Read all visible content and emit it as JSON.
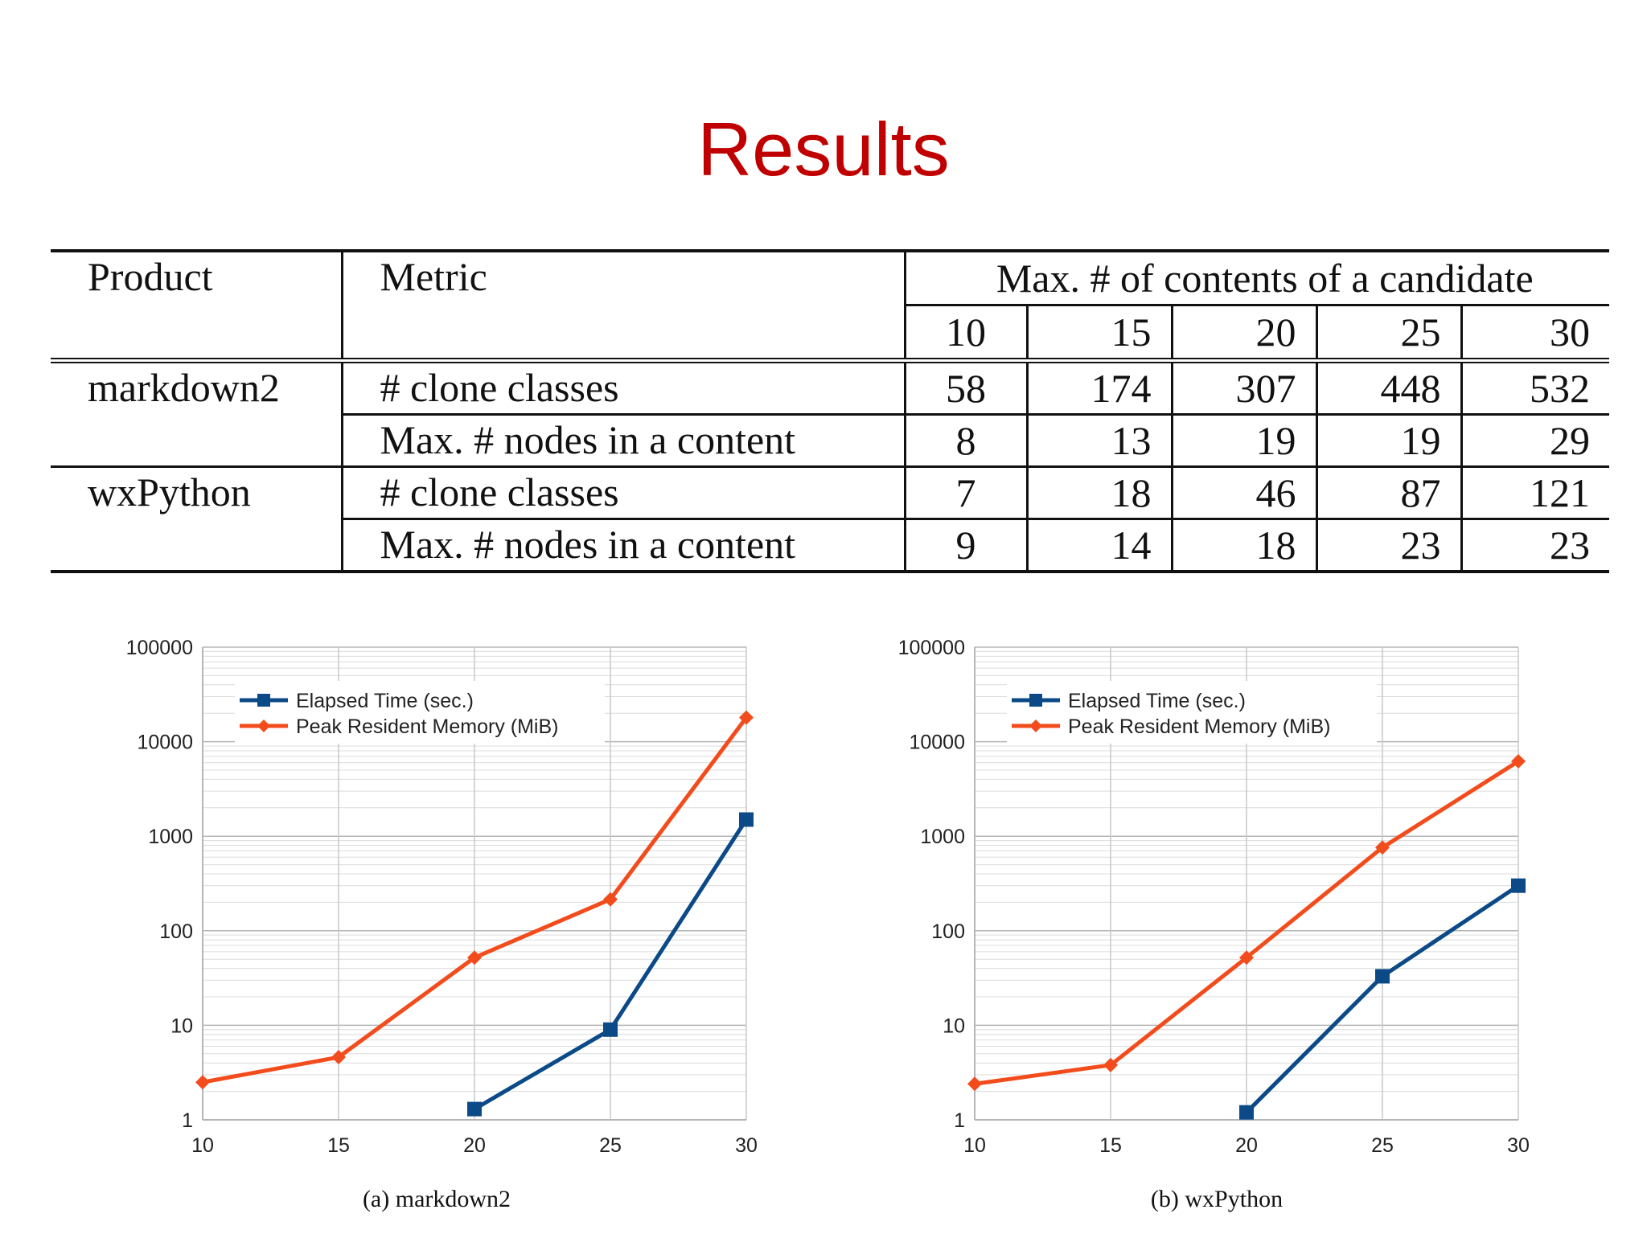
{
  "slide": {
    "title": "Results"
  },
  "table": {
    "headers": {
      "product": "Product",
      "metric": "Metric",
      "group": "Max. # of contents of a candidate"
    },
    "columns": [
      "10",
      "15",
      "20",
      "25",
      "30"
    ],
    "rows": [
      {
        "product": "markdown2",
        "metric": "# clone classes",
        "values": [
          "58",
          "174",
          "307",
          "448",
          "532"
        ]
      },
      {
        "product": "",
        "metric": "Max. # nodes in a content",
        "values": [
          "8",
          "13",
          "19",
          "19",
          "29"
        ]
      },
      {
        "product": "wxPython",
        "metric": "# clone classes",
        "values": [
          "7",
          "18",
          "46",
          "87",
          "121"
        ]
      },
      {
        "product": "",
        "metric": "Max. # nodes in a content",
        "values": [
          "9",
          "14",
          "18",
          "23",
          "23"
        ]
      }
    ]
  },
  "chart_data": [
    {
      "type": "line",
      "caption": "(a)  markdown2",
      "x": [
        10,
        15,
        20,
        25,
        30
      ],
      "xlim": [
        10,
        30
      ],
      "ylim": [
        1,
        100000
      ],
      "yscale": "log",
      "xticks": [
        "10",
        "15",
        "20",
        "25",
        "30"
      ],
      "yticks": [
        "1",
        "10",
        "100",
        "1000",
        "10000",
        "100000"
      ],
      "grid": true,
      "legend_position": "top-left",
      "series": [
        {
          "name": "Elapsed Time (sec.)",
          "color": "#0b4a86",
          "marker": "square",
          "x": [
            20,
            25,
            30
          ],
          "values": [
            1.3,
            9,
            1500
          ]
        },
        {
          "name": "Peak Resident Memory (MiB)",
          "color": "#f24c1c",
          "marker": "diamond",
          "x": [
            10,
            15,
            20,
            25,
            30
          ],
          "values": [
            2.5,
            4.6,
            52,
            215,
            18000
          ]
        }
      ]
    },
    {
      "type": "line",
      "caption": "(b)  wxPython",
      "x": [
        10,
        15,
        20,
        25,
        30
      ],
      "xlim": [
        10,
        30
      ],
      "ylim": [
        1,
        100000
      ],
      "yscale": "log",
      "xticks": [
        "10",
        "15",
        "20",
        "25",
        "30"
      ],
      "yticks": [
        "1",
        "10",
        "100",
        "1000",
        "10000",
        "100000"
      ],
      "grid": true,
      "legend_position": "top-left",
      "series": [
        {
          "name": "Elapsed Time (sec.)",
          "color": "#0b4a86",
          "marker": "square",
          "x": [
            20,
            25,
            30
          ],
          "values": [
            1.2,
            33,
            300
          ]
        },
        {
          "name": "Peak Resident Memory (MiB)",
          "color": "#f24c1c",
          "marker": "diamond",
          "x": [
            10,
            15,
            20,
            25,
            30
          ],
          "values": [
            2.4,
            3.8,
            52,
            760,
            6200
          ]
        }
      ]
    }
  ]
}
